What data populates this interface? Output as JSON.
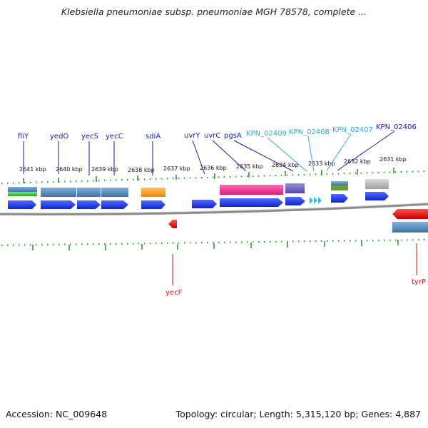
{
  "title": "Klebsiella pneumoniae subsp. pneumoniae MGH 78578, complete ...",
  "accession": "Accession: NC_009648",
  "topology": "Topology: circular; Length: 5,315,120 bp; Genes: 4,887",
  "ticks": [
    "2641 kbp",
    "2640 kbp",
    "2639 kbp",
    "2638 kbp",
    "2637 kbp",
    "2636 kbp",
    "2635 kbp",
    "2634 kbp",
    "2633 kbp",
    "2632 kbp",
    "2631 kbp"
  ],
  "gene_labels_top": [
    "fliY",
    "yedO",
    "yecS",
    "yecC",
    "sdiA",
    "uvrY",
    "uvrC",
    "pgsA",
    "KPN_02409",
    "KPN_02408",
    "KPN_02407",
    "KPN_02406"
  ],
  "gene_labels_bottom": [
    "yecF",
    "tyrP"
  ],
  "colors": {
    "label_blue": "#1a1aa6",
    "label_cyan": "#29a9d6",
    "label_red": "#d61a1a",
    "gene_blue": "#1f36e6",
    "gene_red": "#e61414",
    "tick_green": "#2a8a2a",
    "steel": "#4f86b8",
    "green": "#3cc83c",
    "orange": "#f59a12",
    "magenta": "#e8338e",
    "purple": "#6f63c2",
    "olive": "#6a9a3a",
    "gray": "#b8b8b8",
    "cyan": "#3fb8e0",
    "backbone": "#7a7a7a"
  }
}
